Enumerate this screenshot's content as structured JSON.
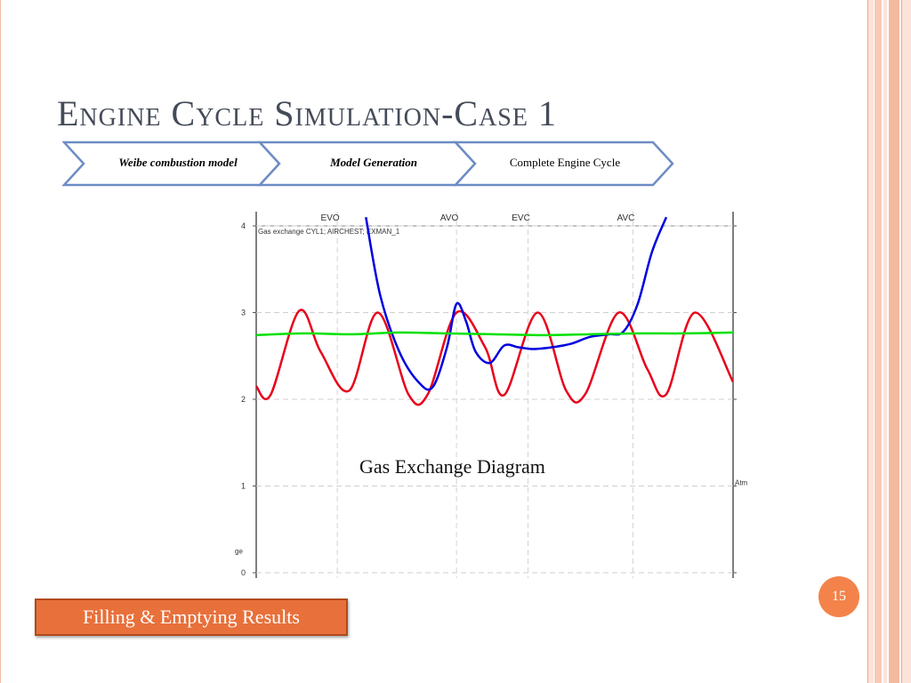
{
  "slide": {
    "title": "Engine Cycle Simulation-Case 1",
    "page_number": "15",
    "button_label": "Filling & Emptying Results",
    "caption": "Gas Exchange Diagram"
  },
  "process_steps": [
    {
      "label": "Weibe combustion model",
      "style": "bold-italic"
    },
    {
      "label": "Model Generation",
      "style": "bold-italic"
    },
    {
      "label": "Complete Engine Cycle",
      "style": "normal"
    }
  ],
  "colors": {
    "title": "#444b59",
    "accent_orange": "#e8703a",
    "chevron_border": "#6e8cc4",
    "red_series": "#e8001a",
    "blue_series": "#0000e0",
    "green_series": "#00e000"
  },
  "chart_data": {
    "type": "line",
    "title": "Gas exchange CYL1; AIRCHEST; EXMAN_1",
    "y_ticks": [
      "0",
      "1",
      "2",
      "3",
      "4"
    ],
    "ylim": [
      0,
      4
    ],
    "x_top_labels": [
      "EVO",
      "AVO",
      "EVC",
      "AVC"
    ],
    "x_top_label_positions": [
      0.17,
      0.42,
      0.57,
      0.79
    ],
    "unit_label": "Atm",
    "bottom_label_fragment": "ge",
    "grid": true,
    "series": [
      {
        "name": "red",
        "x": [
          0.0,
          0.03,
          0.09,
          0.135,
          0.195,
          0.255,
          0.32,
          0.36,
          0.42,
          0.48,
          0.52,
          0.59,
          0.65,
          0.69,
          0.76,
          0.82,
          0.86,
          0.92,
          1.0
        ],
        "y": [
          2.15,
          2.05,
          3.02,
          2.55,
          2.1,
          3.0,
          2.05,
          2.06,
          3.0,
          2.6,
          2.05,
          3.0,
          2.1,
          2.06,
          3.0,
          2.35,
          2.06,
          3.0,
          2.2
        ]
      },
      {
        "name": "blue",
        "x": [
          0.23,
          0.26,
          0.3,
          0.34,
          0.37,
          0.4,
          0.42,
          0.44,
          0.46,
          0.49,
          0.52,
          0.55,
          0.58,
          0.62,
          0.66,
          0.7,
          0.74,
          0.77,
          0.8,
          0.83,
          0.86
        ],
        "y": [
          4.1,
          3.2,
          2.55,
          2.2,
          2.14,
          2.6,
          3.1,
          2.9,
          2.55,
          2.42,
          2.62,
          2.6,
          2.58,
          2.6,
          2.64,
          2.72,
          2.75,
          2.78,
          3.1,
          3.7,
          4.1
        ]
      },
      {
        "name": "green",
        "x": [
          0.0,
          0.1,
          0.2,
          0.3,
          0.4,
          0.5,
          0.6,
          0.7,
          0.8,
          0.9,
          1.0
        ],
        "y": [
          2.74,
          2.76,
          2.75,
          2.77,
          2.76,
          2.75,
          2.74,
          2.75,
          2.76,
          2.76,
          2.77
        ]
      }
    ]
  }
}
